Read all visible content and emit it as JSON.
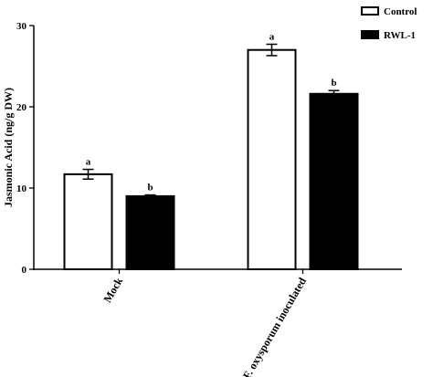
{
  "chart_data": {
    "type": "bar",
    "categories": [
      "Mock",
      "F. oxysporum inoculated"
    ],
    "ylabel": "Jasmonic Acid (ng/g DW)",
    "xlabel": "",
    "ylim": [
      0,
      30
    ],
    "yticks": [
      0,
      10,
      20,
      30
    ],
    "legend_position": "top-right",
    "error_bars": true,
    "series": [
      {
        "name": "Control",
        "values": [
          11.7,
          27.0
        ],
        "errors": [
          0.6,
          0.7
        ],
        "letters": [
          "a",
          "a"
        ],
        "fill": "#ffffff",
        "stroke": "#000000"
      },
      {
        "name": "RWL-1",
        "values": [
          9.0,
          21.6
        ],
        "errors": [
          0.15,
          0.4
        ],
        "letters": [
          "b",
          "b"
        ],
        "fill": "#000000",
        "stroke": "#000000"
      }
    ]
  }
}
